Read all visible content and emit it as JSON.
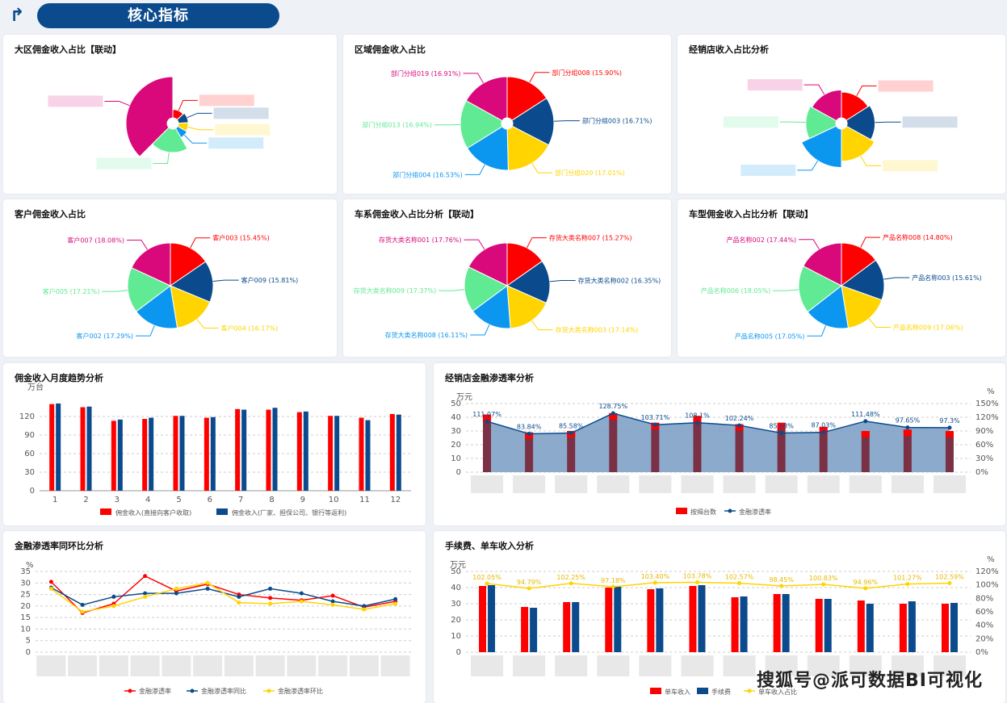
{
  "header": {
    "title": "核心指标"
  },
  "colors": {
    "red": "#ff0000",
    "navy": "#0b4a8c",
    "yellow": "#ffd400",
    "blue": "#0b97ef",
    "green": "#61ea94",
    "magenta": "#d9097b",
    "maroon": "#7a3045",
    "area": "#7fa2c7"
  },
  "pies": [
    {
      "title": "大区佣金收入占比【联动】",
      "type": "rose",
      "values": [
        16,
        13,
        11,
        10,
        25,
        45
      ],
      "labels": [
        "",
        "",
        "",
        "",
        "",
        ""
      ]
    },
    {
      "title": "区域佣金收入占比",
      "type": "pie",
      "values": [
        15.9,
        16.71,
        17.01,
        16.53,
        16.94,
        16.91
      ],
      "labels": [
        "部门分组008 (15.90%)",
        "部门分组003 (16.71%)",
        "部门分组020 (17.01%)",
        "部门分组004 (16.53%)",
        "部门分组013 (16.94%)",
        "部门分组019 (16.91%)"
      ]
    },
    {
      "title": "经销店收入占比分析",
      "type": "rose2",
      "values": [
        16,
        17,
        17,
        18,
        15,
        17
      ],
      "radii": [
        0.75,
        0.8,
        0.9,
        1.05,
        0.85,
        0.8
      ],
      "labels": [
        "",
        "",
        "",
        "",
        "",
        ""
      ]
    },
    {
      "title": "客户佣金收入占比",
      "type": "pie",
      "values": [
        15.45,
        15.81,
        16.17,
        17.29,
        17.21,
        18.08
      ],
      "labels": [
        "客户003 (15.45%)",
        "客户009 (15.81%)",
        "客户004 (16.17%)",
        "客户002 (17.29%)",
        "客户005 (17.21%)",
        "客户007 (18.08%)"
      ]
    },
    {
      "title": "车系佣金收入占比分析【联动】",
      "type": "pie",
      "values": [
        15.27,
        16.35,
        17.14,
        16.11,
        17.37,
        17.76
      ],
      "labels": [
        "存货大类名称007 (15.27%)",
        "存货大类名称002 (16.35%)",
        "存货大类名称003 (17.14%)",
        "存货大类名称008 (16.11%)",
        "存货大类名称009 (17.37%)",
        "存货大类名称001 (17.76%)"
      ]
    },
    {
      "title": "车型佣金收入占比分析【联动】",
      "type": "pie",
      "values": [
        14.8,
        15.61,
        17.06,
        17.05,
        18.05,
        17.44
      ],
      "labels": [
        "产品名称008 (14.80%)",
        "产品名称003 (15.61%)",
        "产品名称009 (17.06%)",
        "产品名称005 (17.05%)",
        "产品名称006 (18.05%)",
        "产品名称002 (17.44%)"
      ]
    }
  ],
  "chart_data": [
    {
      "type": "bar",
      "title": "佣金收入月度趋势分析",
      "ylabel": "万台",
      "categories": [
        "1",
        "2",
        "3",
        "4",
        "5",
        "6",
        "7",
        "8",
        "9",
        "10",
        "11",
        "12"
      ],
      "ylim": [
        0,
        150
      ],
      "yticks": [
        0,
        30,
        60,
        90,
        120
      ],
      "series": [
        {
          "name": "佣金收入(直接向客户收取)",
          "values": [
            140,
            135,
            113,
            116,
            121,
            118,
            132,
            131,
            127,
            121,
            118,
            124
          ]
        },
        {
          "name": "佣金收入(厂家、担保公司、银行等返利)",
          "values": [
            141,
            136,
            115,
            118,
            121,
            119,
            131,
            134,
            128,
            121,
            114,
            123
          ]
        }
      ]
    },
    {
      "type": "bar-area",
      "title": "经销店金融渗透率分析",
      "ylabel": "万元",
      "y2label": "%",
      "ylim": [
        0,
        50
      ],
      "y2lim": [
        0,
        150
      ],
      "series": [
        {
          "name": "按揭台数",
          "values": [
            42,
            29,
            30,
            43,
            36,
            41,
            35,
            36,
            33,
            30,
            31,
            30
          ]
        },
        {
          "name": "金融渗透率",
          "values": [
            111.07,
            83.84,
            85.58,
            128.75,
            103.71,
            108.1,
            102.24,
            85.68,
            87.03,
            111.48,
            97.65,
            97.3
          ],
          "labels": [
            "111.07%",
            "83.84%",
            "85.58%",
            "128.75%",
            "103.71%",
            "108.1%",
            "102.24%",
            "85.68%",
            "87.03%",
            "111.48%",
            "97.65%",
            "97.3%"
          ]
        }
      ]
    },
    {
      "type": "line",
      "title": "金融渗透率同环比分析",
      "ylabel": "%",
      "ylim": [
        0,
        35
      ],
      "yticks": [
        0,
        5,
        10,
        15,
        20,
        25,
        30,
        35
      ],
      "series": [
        {
          "name": "金融渗透率",
          "values": [
            30.5,
            17,
            21,
            33,
            26.5,
            29.5,
            25,
            23.5,
            22.5,
            24.5,
            19.5,
            22
          ]
        },
        {
          "name": "金融渗透率同比",
          "values": [
            28,
            20.5,
            24,
            25.5,
            25.5,
            27.5,
            24,
            27.5,
            25.5,
            22,
            20,
            23
          ]
        },
        {
          "name": "金融渗透率环比",
          "values": [
            27.5,
            17.5,
            20,
            24,
            27.5,
            30,
            21.5,
            21,
            22,
            20.5,
            18.5,
            21
          ]
        }
      ]
    },
    {
      "type": "bar-line",
      "title": "手续费、单车收入分析",
      "ylabel": "万元",
      "y2label": "%",
      "ylim": [
        0,
        50
      ],
      "y2lim": [
        0,
        120
      ],
      "series": [
        {
          "name": "单车收入",
          "values": [
            41,
            28,
            31,
            40,
            39,
            41,
            34,
            36,
            33,
            32,
            30,
            30
          ]
        },
        {
          "name": "手续费",
          "values": [
            41.5,
            27.5,
            31,
            40.5,
            39.5,
            41.5,
            34.5,
            36,
            33,
            30,
            31.5,
            30.5
          ]
        },
        {
          "name": "单车收入占比",
          "values": [
            102.05,
            94.79,
            102.25,
            97.18,
            103.4,
            103.78,
            102.57,
            98.45,
            100.83,
            94.96,
            101.27,
            102.59
          ],
          "labels": [
            "102.05%",
            "94.79%",
            "102.25%",
            "97.18%",
            "103.40%",
            "103.78%",
            "102.57%",
            "98.45%",
            "100.83%",
            "94.96%",
            "101.27%",
            "102.59%"
          ]
        }
      ]
    }
  ],
  "watermark": "搜狐号@派可数据BI可视化"
}
